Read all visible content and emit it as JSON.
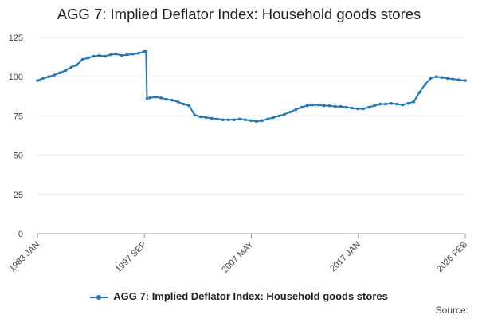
{
  "chart_data": {
    "type": "line",
    "title": "AGG 7: Implied Deflator Index: Household goods stores",
    "xlabel": "",
    "ylabel": "",
    "ylim": [
      0,
      125
    ],
    "yticks": [
      0,
      25,
      50,
      75,
      100,
      125
    ],
    "x_tick_labels": [
      "1988 JAN",
      "1997 SEP",
      "2007 MAY",
      "2017 JAN",
      "2026 FEB"
    ],
    "x_range": [
      "1988-01",
      "2026-02"
    ],
    "legend_position": "bottom",
    "grid": true,
    "series": [
      {
        "name": "AGG 7: Implied Deflator Index: Household goods stores",
        "color": "#1f77b4",
        "x": [
          "1988-01",
          "1988-07",
          "1989-01",
          "1989-07",
          "1990-01",
          "1990-07",
          "1991-01",
          "1991-07",
          "1992-01",
          "1992-07",
          "1993-01",
          "1993-07",
          "1994-01",
          "1994-07",
          "1995-01",
          "1995-07",
          "1996-01",
          "1996-07",
          "1997-01",
          "1997-07",
          "1997-09",
          "1997-10",
          "1998-01",
          "1998-07",
          "1999-01",
          "1999-07",
          "2000-01",
          "2000-07",
          "2001-01",
          "2001-07",
          "2002-01",
          "2002-07",
          "2003-01",
          "2003-07",
          "2004-01",
          "2004-07",
          "2005-01",
          "2005-07",
          "2006-01",
          "2006-07",
          "2007-01",
          "2007-07",
          "2008-01",
          "2008-07",
          "2009-01",
          "2009-07",
          "2010-01",
          "2010-07",
          "2011-01",
          "2011-07",
          "2012-01",
          "2012-07",
          "2013-01",
          "2013-07",
          "2014-01",
          "2014-07",
          "2015-01",
          "2015-07",
          "2016-01",
          "2016-07",
          "2017-01",
          "2017-07",
          "2018-01",
          "2018-07",
          "2019-01",
          "2019-07",
          "2020-01",
          "2020-07",
          "2021-01",
          "2021-07",
          "2022-01",
          "2022-07",
          "2023-01",
          "2023-07",
          "2024-01",
          "2024-07",
          "2025-01",
          "2025-07",
          "2026-02"
        ],
        "values": [
          97.5,
          99,
          100,
          101,
          102.5,
          104,
          106,
          107.5,
          111,
          112,
          113,
          113.5,
          113,
          114,
          114.5,
          113.5,
          114,
          114.5,
          115,
          116,
          116,
          86,
          86.5,
          87,
          86.5,
          85.5,
          85,
          84,
          82.5,
          81.5,
          75.5,
          74.5,
          74,
          73.5,
          73,
          72.5,
          72.5,
          72.5,
          73,
          72.5,
          72,
          71.5,
          72,
          73,
          74,
          75,
          76,
          77.5,
          79,
          80.5,
          81.5,
          82,
          82,
          81.5,
          81.5,
          81,
          81,
          80.5,
          80,
          79.5,
          79.5,
          80.5,
          81.5,
          82.5,
          82.5,
          83,
          82.5,
          82,
          83,
          84,
          90,
          95,
          99,
          100,
          99.5,
          99,
          98.5,
          98,
          97.5
        ]
      }
    ]
  },
  "legend": {
    "label": "AGG 7: Implied Deflator Index: Household goods stores"
  },
  "footer": {
    "source": "Source:"
  }
}
